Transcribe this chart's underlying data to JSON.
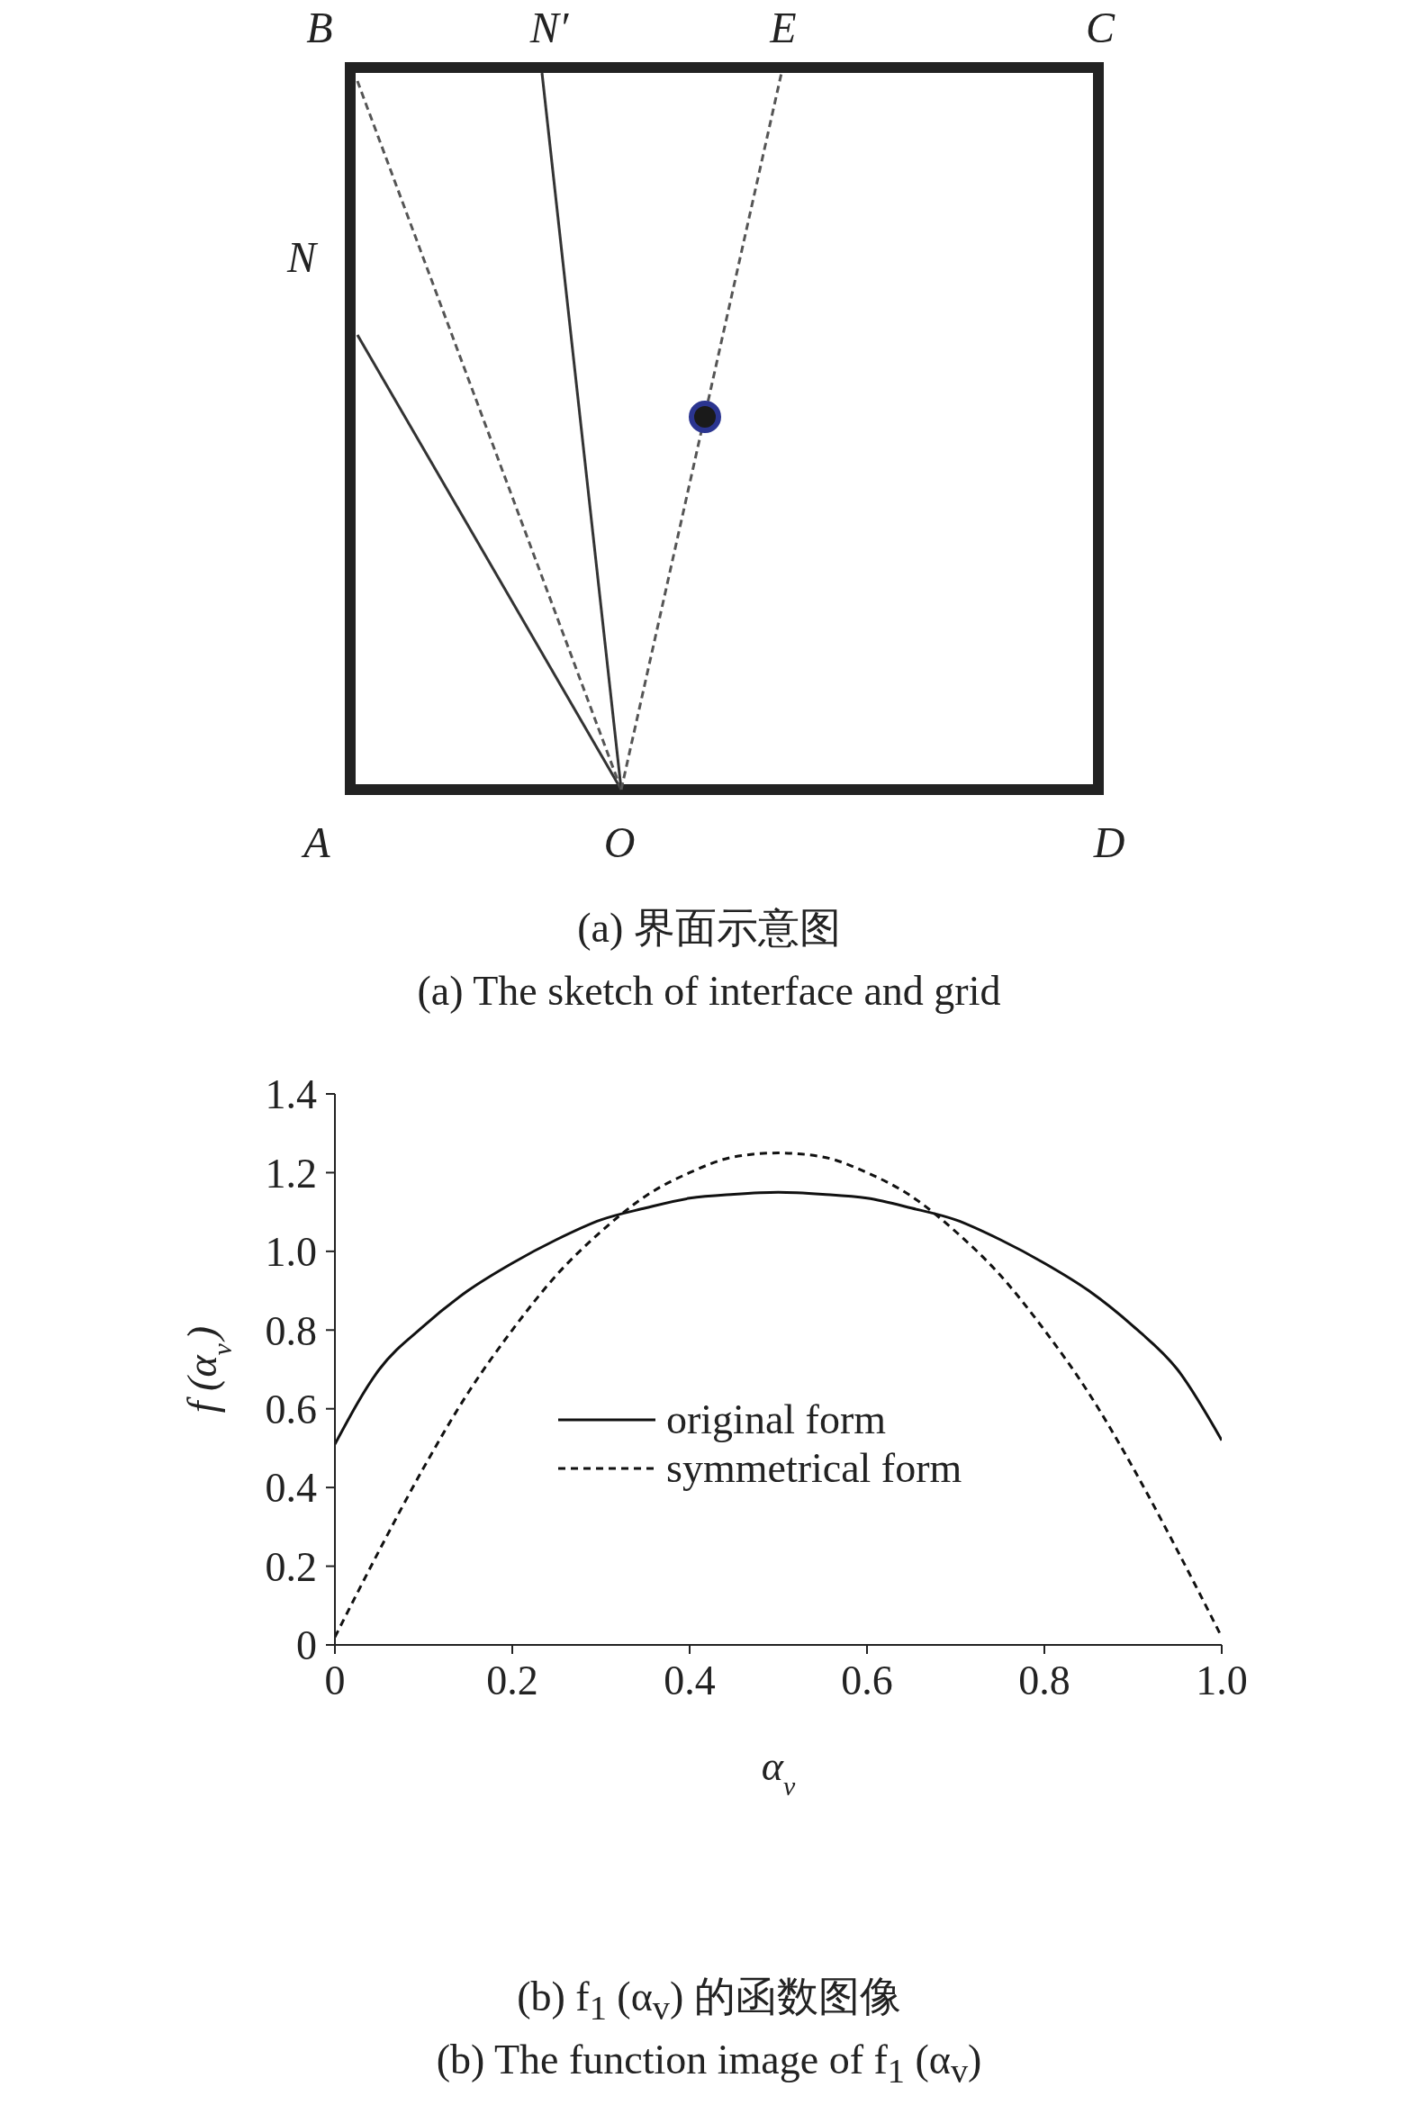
{
  "chart_data": [
    {
      "type": "other",
      "title": "(a) 界面示意图",
      "subtitle": "(a) The sketch of interface and grid",
      "annotations": [
        "B",
        "N′",
        "E",
        "C",
        "N",
        "A",
        "O",
        "D"
      ]
    },
    {
      "type": "line",
      "title": "(b) f$_{1}$ (α$_{v}$) 的函数图像",
      "subtitle": "(b) The function image of f$_{1}$ (α$_{v}$)",
      "xlabel": "α$_{v}$",
      "ylabel": "f (α$_{v}$)",
      "x": [
        0,
        0.05,
        0.1,
        0.15,
        0.2,
        0.25,
        0.3,
        0.35,
        0.4,
        0.45,
        0.5,
        0.55,
        0.6,
        0.65,
        0.7,
        0.75,
        0.8,
        0.85,
        0.9,
        0.95,
        1.0
      ],
      "series": [
        {
          "name": "original form",
          "color": "#111111",
          "line_style": "solid",
          "values": [
            0.51,
            0.7,
            0.81,
            0.9,
            0.97,
            1.03,
            1.08,
            1.11,
            1.135,
            1.145,
            1.15,
            1.145,
            1.135,
            1.11,
            1.08,
            1.03,
            0.97,
            0.9,
            0.81,
            0.7,
            0.52
          ]
        },
        {
          "name": "symmetrical form",
          "color": "#111111",
          "line_style": "dashed",
          "values": [
            0.02,
            0.24,
            0.45,
            0.64,
            0.8,
            0.94,
            1.05,
            1.14,
            1.2,
            1.24,
            1.25,
            1.24,
            1.2,
            1.14,
            1.05,
            0.94,
            0.8,
            0.64,
            0.45,
            0.24,
            0.02
          ]
        }
      ],
      "xlim": [
        0,
        1
      ],
      "xticks": [
        0,
        0.2,
        0.4,
        0.6,
        0.8,
        {
          "value": 1,
          "label": "1.0"
        }
      ],
      "ylim": [
        0,
        1.4
      ],
      "yticks": [
        0,
        0.2,
        0.4,
        0.6,
        0.8,
        {
          "value": 1,
          "label": "1.0"
        },
        1.2,
        1.4
      ],
      "legend": "center",
      "marker": "none"
    }
  ]
}
